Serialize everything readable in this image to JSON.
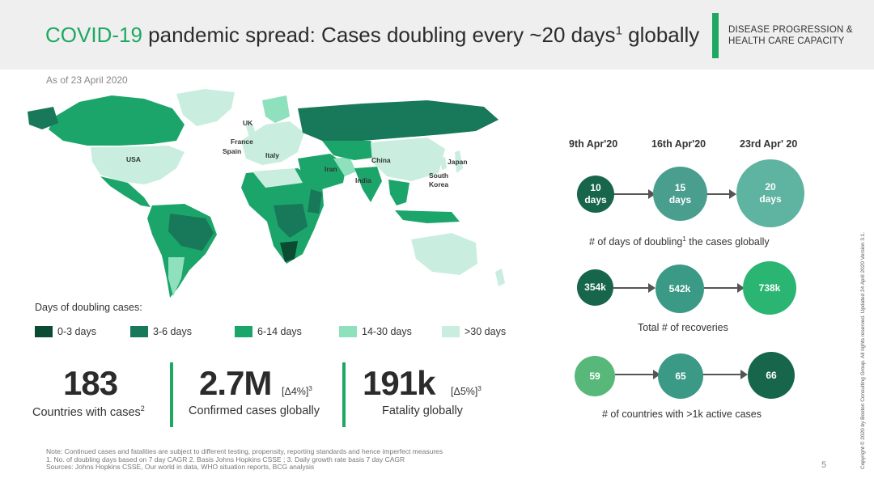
{
  "header": {
    "title_highlight": "COVID-19",
    "title_main": " pandemic spread: Cases doubling every ~20 days",
    "title_sup": "1",
    "title_end": " globally",
    "category_line1": "DISEASE PROGRESSION &",
    "category_line2": "HEALTH CARE CAPACITY"
  },
  "as_of": "As of 23 April 2020",
  "map_labels": {
    "uk": "UK",
    "france": "France",
    "spain": "Spain",
    "italy": "Italy",
    "usa": "USA",
    "iran": "Iran",
    "china": "China",
    "india": "India",
    "japan": "Japan",
    "south_korea_1": "South",
    "south_korea_2": "Korea"
  },
  "legend": {
    "title": "Days of doubling cases:",
    "items": [
      {
        "label": "0-3 days",
        "color": "#0b4a33"
      },
      {
        "label": "3-6 days",
        "color": "#17785a"
      },
      {
        "label": "6-14 days",
        "color": "#1ca56a"
      },
      {
        "label": "14-30 days",
        "color": "#8fe0bd"
      },
      {
        "label": ">30 days",
        "color": "#c9eedf"
      }
    ]
  },
  "stats": [
    {
      "value": "183",
      "suffix": "",
      "sup": "",
      "label": "Countries with cases",
      "label_sup": "2"
    },
    {
      "value": "2.7M",
      "suffix": "[Δ4%]",
      "sup": "3",
      "label": "Confirmed cases globally",
      "label_sup": ""
    },
    {
      "value": "191k",
      "suffix": "[Δ5%]",
      "sup": "3",
      "label": "Fatality globally",
      "label_sup": ""
    }
  ],
  "timeline": {
    "headers": [
      "9th Apr'20",
      "16th Apr'20",
      "23rd Apr' 20"
    ],
    "doubling": {
      "values": [
        "10",
        "15",
        "20"
      ],
      "unit": "days",
      "caption_a": "# of days of doubling",
      "caption_sup": "1",
      "caption_b": " the cases globally"
    },
    "recoveries": {
      "values": [
        "354k",
        "542k",
        "738k"
      ],
      "caption": "Total # of recoveries"
    },
    "countries": {
      "values": [
        "59",
        "65",
        "66"
      ],
      "caption": "# of countries with >1k active cases"
    }
  },
  "colors": {
    "accent": "#1ea862",
    "dark": "#17664c",
    "teal": "#4a9e8e",
    "light_teal": "#5fb3a1",
    "green": "#2bb573",
    "mid_green": "#58b879"
  },
  "footnotes": [
    "Note: Continued cases and fatalities are subject to different testing, propensity, reporting standards and hence imperfect measures",
    "1. No. of doubling days based on 7 day CAGR   2. Basis Johns Hopkins CSSE ; 3. Daily growth rate basis 7 day CAGR",
    "Sources: Johns Hopkins CSSE, Our world in data, WHO situation reports, BCG analysis"
  ],
  "page_number": "5",
  "copyright": "Copyright © 2020 by Boston Consulting Group. All rights reserved.  Updated 24 April 2020 Version 3.1."
}
